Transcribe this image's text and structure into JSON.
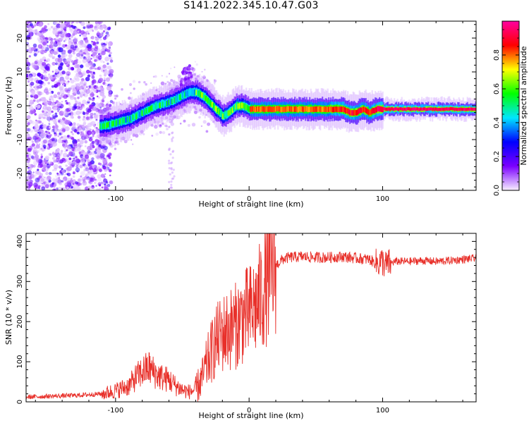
{
  "title": "S141.2022.345.10.47.G03",
  "chart_data": [
    {
      "type": "heatmap",
      "xlabel": "Height of straight line (km)",
      "ylabel": "Frequency (Hz)",
      "xlim": [
        -167,
        170
      ],
      "ylim": [
        -25,
        25
      ],
      "xticks": [
        -100,
        0,
        100
      ],
      "xtick_labels": [
        "-100",
        "0",
        "100"
      ],
      "yticks": [
        -20,
        -10,
        0,
        10,
        20
      ],
      "ytick_labels": [
        "-20",
        "-10",
        "0",
        "10",
        "20"
      ],
      "grid": false,
      "colorbar": {
        "label": "Normalized spectral amplitude",
        "range": [
          0,
          1
        ],
        "ticks": [
          0.0,
          0.2,
          0.4,
          0.6,
          0.8
        ],
        "tick_labels": [
          "0.0",
          "0.2",
          "0.4",
          "0.6",
          "0.8"
        ],
        "colors": [
          "#f8f0ff",
          "#7b00ff",
          "#0000ff",
          "#00e6ff",
          "#00ff00",
          "#ffff00",
          "#ff0000",
          "#ff00a0"
        ]
      },
      "ridge": {
        "description_values": "peak frequency (Hz) vs height (km)",
        "x": [
          -110,
          -100,
          -90,
          -80,
          -70,
          -60,
          -50,
          -45,
          -40,
          -35,
          -30,
          -25,
          -20,
          -15,
          -10,
          -5,
          0,
          10,
          20,
          40,
          60,
          70,
          75,
          80,
          85,
          90,
          95,
          100,
          120,
          140,
          160,
          170
        ],
        "y": [
          -6,
          -5,
          -4,
          -2,
          0,
          1,
          3,
          4,
          4,
          3,
          1,
          -1,
          -3,
          -2,
          0,
          0,
          -1,
          -1,
          -1,
          -1,
          -1,
          -1,
          -2,
          -2,
          -1,
          -2,
          -1,
          -1,
          -1,
          -1,
          -1,
          -1
        ]
      }
    },
    {
      "type": "line",
      "xlabel": "Height of straight line (km)",
      "ylabel": "SNR (10 * v/v)",
      "xlim": [
        -167,
        170
      ],
      "ylim": [
        0,
        420
      ],
      "xticks": [
        -100,
        0,
        100
      ],
      "xtick_labels": [
        "-100",
        "0",
        "100"
      ],
      "yticks": [
        0,
        100,
        200,
        300,
        400
      ],
      "ytick_labels": [
        "0",
        "100",
        "200",
        "300",
        "400"
      ],
      "grid": false,
      "line_color": "#e8302a",
      "x": [
        -167,
        -150,
        -130,
        -110,
        -100,
        -90,
        -85,
        -80,
        -75,
        -70,
        -65,
        -60,
        -55,
        -50,
        -45,
        -40,
        -35,
        -30,
        -25,
        -20,
        -15,
        -10,
        -5,
        0,
        5,
        10,
        15,
        20,
        25,
        30,
        40,
        50,
        60,
        70,
        80,
        90,
        95,
        100,
        102,
        105,
        110,
        120,
        130,
        140,
        150,
        160,
        170
      ],
      "y": [
        12,
        14,
        16,
        20,
        28,
        40,
        60,
        75,
        85,
        70,
        60,
        55,
        40,
        30,
        25,
        30,
        60,
        110,
        150,
        170,
        180,
        190,
        210,
        220,
        240,
        270,
        310,
        340,
        355,
        360,
        362,
        360,
        360,
        362,
        358,
        355,
        345,
        350,
        340,
        345,
        350,
        350,
        352,
        350,
        352,
        355,
        358
      ]
    }
  ]
}
